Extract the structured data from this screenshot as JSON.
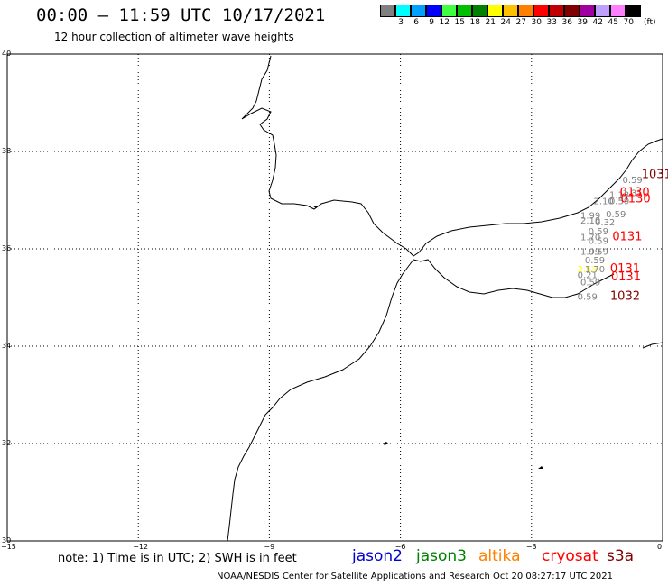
{
  "header": {
    "title": "00:00 – 11:59 UTC 10/17/2021",
    "subtitle": "12 hour collection of altimeter wave heights"
  },
  "legend": {
    "colors": [
      "#808080",
      "#00ffff",
      "#00a0ff",
      "#0000ff",
      "#40ff40",
      "#00c000",
      "#008000",
      "#ffff00",
      "#ffc000",
      "#ff8000",
      "#ff0000",
      "#c00000",
      "#800000",
      "#a000a0",
      "#c0a0ff",
      "#ff80ff",
      "#000000"
    ],
    "labels": [
      "3",
      "6",
      "9",
      "12",
      "15",
      "18",
      "21",
      "24",
      "27",
      "30",
      "33",
      "36",
      "39",
      "42",
      "45",
      "70"
    ],
    "unit": "(ft)"
  },
  "axes": {
    "y_ticks": [
      "40",
      "38",
      "36",
      "34",
      "32",
      "30"
    ],
    "x_ticks": [
      "−15",
      "−12",
      "−9",
      "−6",
      "−3",
      "0"
    ]
  },
  "tracks": {
    "labels": [
      {
        "text": "0.59",
        "lon": -0.92,
        "lat": 37.35,
        "color": "#808080"
      },
      {
        "text": "1031",
        "lon": -0.48,
        "lat": 37.45,
        "color": "#800000"
      },
      {
        "text": "1.13",
        "lon": -1.22,
        "lat": 37.05,
        "color": "#808080"
      },
      {
        "text": "1.31",
        "lon": -0.92,
        "lat": 37.08,
        "color": "#808080"
      },
      {
        "text": "0130",
        "lon": -0.98,
        "lat": 37.08,
        "color": "#ff0000"
      },
      {
        "text": "2.10",
        "lon": -1.58,
        "lat": 36.92,
        "color": "#808080"
      },
      {
        "text": "0.59",
        "lon": -1.22,
        "lat": 36.92,
        "color": "#808080"
      },
      {
        "text": "0130",
        "lon": -0.96,
        "lat": 36.95,
        "color": "#ff0000"
      },
      {
        "text": "0.59",
        "lon": -1.3,
        "lat": 36.65,
        "color": "#808080"
      },
      {
        "text": "1.99",
        "lon": -1.88,
        "lat": 36.62,
        "color": "#808080"
      },
      {
        "text": "2.10",
        "lon": -1.88,
        "lat": 36.52,
        "color": "#808080"
      },
      {
        "text": "0.32",
        "lon": -1.55,
        "lat": 36.48,
        "color": "#808080"
      },
      {
        "text": "0.59",
        "lon": -1.7,
        "lat": 36.3,
        "color": "#808080"
      },
      {
        "text": "1.70",
        "lon": -1.88,
        "lat": 36.18,
        "color": "#808080"
      },
      {
        "text": "0131",
        "lon": -1.15,
        "lat": 36.18,
        "color": "#ff0000"
      },
      {
        "text": "0.59",
        "lon": -1.7,
        "lat": 36.1,
        "color": "#808080"
      },
      {
        "text": "1.99",
        "lon": -1.88,
        "lat": 35.88,
        "color": "#808080"
      },
      {
        "text": "0.59",
        "lon": -1.7,
        "lat": 35.88,
        "color": "#808080"
      },
      {
        "text": "0.59",
        "lon": -1.78,
        "lat": 35.7,
        "color": "#808080"
      },
      {
        "text": "2.53",
        "lon": -1.95,
        "lat": 35.52,
        "color": "#ffff00"
      },
      {
        "text": "1.70",
        "lon": -1.78,
        "lat": 35.52,
        "color": "#808080"
      },
      {
        "text": "0131",
        "lon": -1.2,
        "lat": 35.52,
        "color": "#ff0000"
      },
      {
        "text": "0.21",
        "lon": -1.95,
        "lat": 35.4,
        "color": "#808080"
      },
      {
        "text": "0131",
        "lon": -1.18,
        "lat": 35.35,
        "color": "#ff0000"
      },
      {
        "text": "0.59",
        "lon": -1.88,
        "lat": 35.25,
        "color": "#808080"
      },
      {
        "text": "0.59",
        "lon": -1.95,
        "lat": 34.95,
        "color": "#808080"
      },
      {
        "text": "1032",
        "lon": -1.2,
        "lat": 34.95,
        "color": "#800000"
      }
    ]
  },
  "satellites": [
    {
      "name": "jason2",
      "color": "#0000cc"
    },
    {
      "name": "jason3",
      "color": "#008000"
    },
    {
      "name": "altika",
      "color": "#ff8000"
    },
    {
      "name": "cryosat",
      "color": "#ff0000"
    },
    {
      "name": "s3a",
      "color": "#800000"
    }
  ],
  "footer": {
    "note": "note: 1) Time is in UTC; 2) SWH is in feet",
    "credit": "NOAA/NESDIS Center for Satellite Applications and Research    Oct 20 08:27:17 UTC 2021"
  }
}
